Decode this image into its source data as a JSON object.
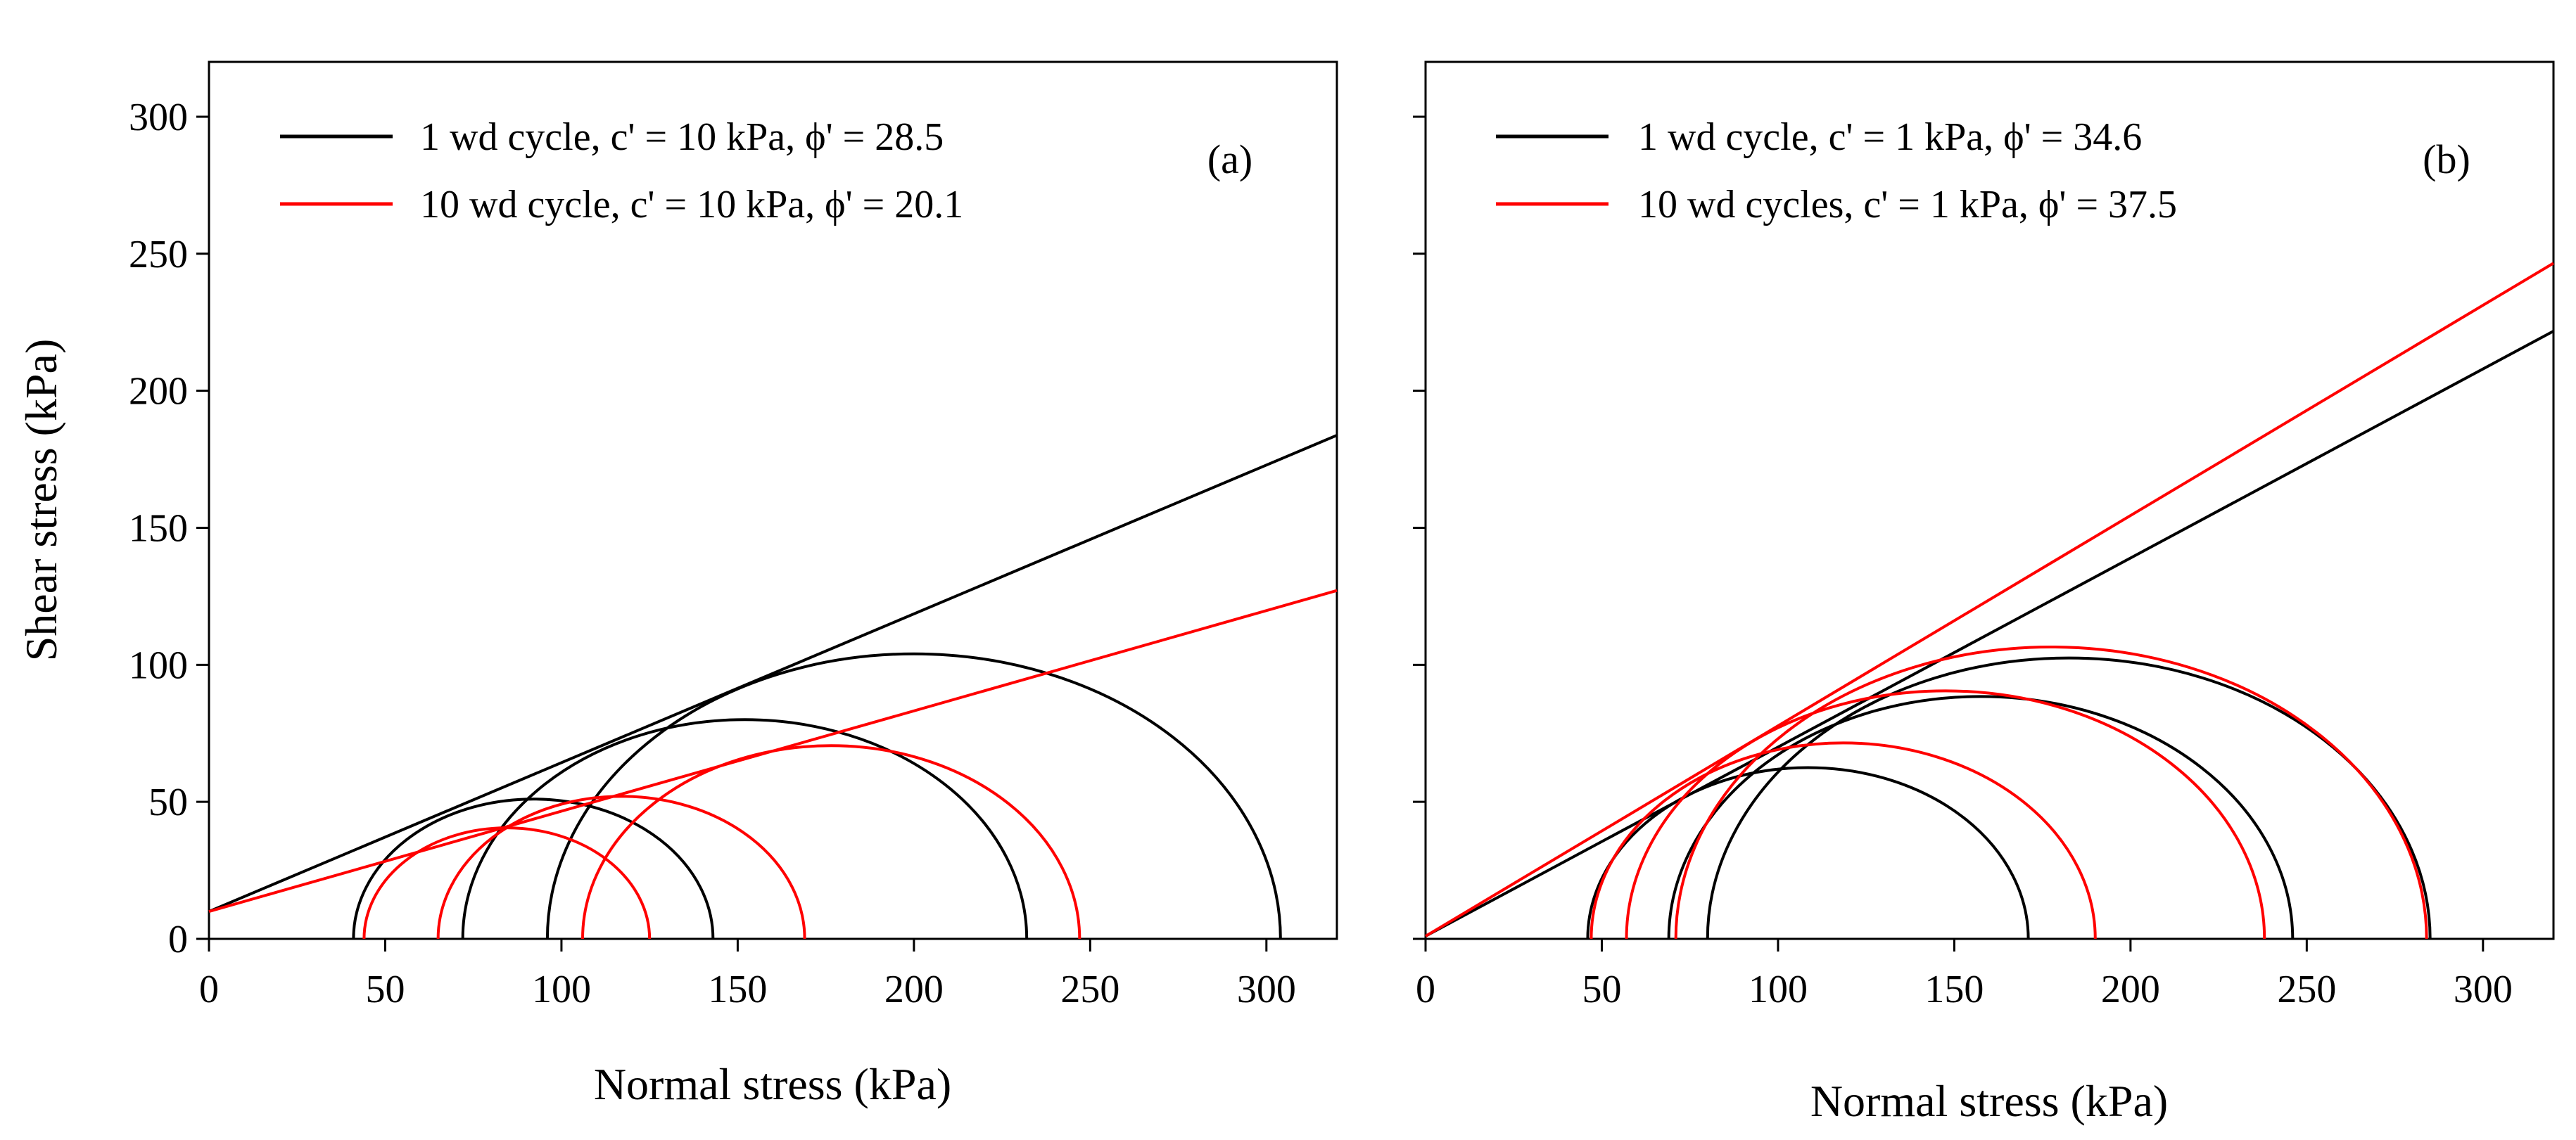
{
  "chart_data": [
    {
      "type": "line",
      "panel_label": "(a)",
      "xlabel": "Normal stress (kPa)",
      "ylabel": "Shear stress (kPa)",
      "xlim": [
        0,
        320
      ],
      "ylim": [
        0,
        320
      ],
      "x_ticks": [
        "0",
        "50",
        "100",
        "150",
        "200",
        "250",
        "300"
      ],
      "y_ticks": [
        "0",
        "50",
        "100",
        "150",
        "200",
        "250",
        "300"
      ],
      "grid": false,
      "legend_position": "top-left",
      "series": [
        {
          "name": "1 wd cycle, c' = 10 kPa, ϕ' = 28.5",
          "color": "#000000",
          "envelope": {
            "c": 10,
            "phi_deg": 28.5
          },
          "circles": [
            {
              "sigma3": 41,
              "sigma1": 143
            },
            {
              "sigma3": 72,
              "sigma1": 232
            },
            {
              "sigma3": 96,
              "sigma1": 304
            }
          ]
        },
        {
          "name": "10 wd cycle, c' = 10 kPa, ϕ' = 20.1",
          "color": "#ff0000",
          "envelope": {
            "c": 10,
            "phi_deg": 20.1
          },
          "circles": [
            {
              "sigma3": 44,
              "sigma1": 125
            },
            {
              "sigma3": 65,
              "sigma1": 169
            },
            {
              "sigma3": 106,
              "sigma1": 247
            }
          ]
        }
      ]
    },
    {
      "type": "line",
      "panel_label": "(b)",
      "xlabel": "Normal stress (kPa)",
      "ylabel": "",
      "xlim": [
        0,
        320
      ],
      "ylim": [
        0,
        320
      ],
      "x_ticks": [
        "0",
        "50",
        "100",
        "150",
        "200",
        "250",
        "300"
      ],
      "y_ticks": [],
      "grid": false,
      "legend_position": "top-left",
      "series": [
        {
          "name": "1 wd cycle, c' = 1 kPa, ϕ' = 34.6",
          "color": "#000000",
          "envelope": {
            "c": 1,
            "phi_deg": 34.6
          },
          "circles": [
            {
              "sigma3": 46,
              "sigma1": 171
            },
            {
              "sigma3": 69,
              "sigma1": 246
            },
            {
              "sigma3": 80,
              "sigma1": 285
            }
          ]
        },
        {
          "name": "10 wd cycles, c' = 1 kPa, ϕ' = 37.5",
          "color": "#ff0000",
          "envelope": {
            "c": 1,
            "phi_deg": 37.5
          },
          "circles": [
            {
              "sigma3": 47,
              "sigma1": 190
            },
            {
              "sigma3": 57,
              "sigma1": 238
            },
            {
              "sigma3": 71,
              "sigma1": 284
            }
          ]
        }
      ]
    }
  ]
}
